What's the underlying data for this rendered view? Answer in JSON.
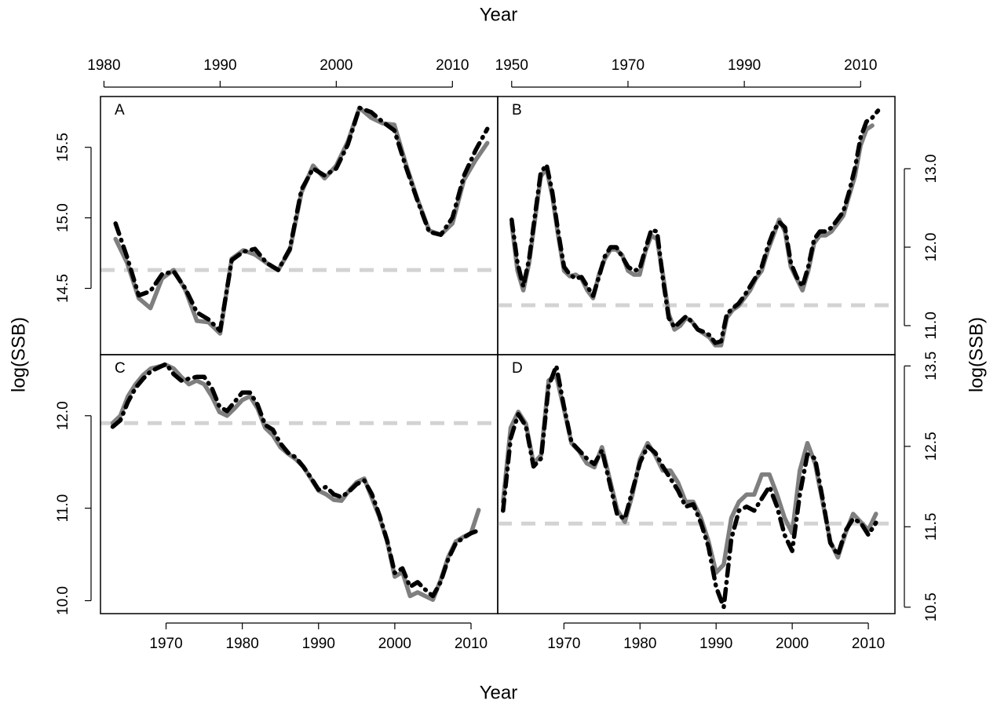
{
  "labels": {
    "top": "Year",
    "bottom": "Year",
    "left": "log(SSB)",
    "right": "log(SSB)"
  },
  "chart_data": [
    {
      "type": "line",
      "label": "A",
      "xaxis": "top",
      "yaxis": "left",
      "xlim": [
        1979.7,
        2013.9
      ],
      "ylim": [
        14.03,
        15.86
      ],
      "xticks": [
        1980,
        1990,
        2000,
        2010
      ],
      "yticks": [
        14.5,
        {
          "value": 15,
          "label": "15.0"
        },
        15.5
      ],
      "reference": 14.63,
      "reference_color": "#d3d3d3",
      "x": [
        1981,
        1982,
        1983,
        1984,
        1985,
        1986,
        1987,
        1988,
        1989,
        1990,
        1991,
        1992,
        1993,
        1994,
        1995,
        1996,
        1997,
        1998,
        1999,
        2000,
        2001,
        2002,
        2003,
        2004,
        2005,
        2006,
        2007,
        2008,
        2009,
        2010,
        2011,
        2012,
        2013
      ],
      "series": [
        {
          "color": "#7f7f7f",
          "style": "solid",
          "values": [
            14.85,
            14.68,
            14.43,
            14.36,
            14.57,
            14.63,
            14.49,
            14.27,
            14.26,
            14.18,
            14.71,
            14.77,
            14.74,
            14.68,
            14.63,
            14.77,
            15.18,
            15.37,
            15.28,
            15.37,
            15.54,
            15.78,
            15.71,
            15.67,
            15.66,
            15.38,
            15.13,
            14.91,
            14.88,
            14.96,
            15.27,
            15.41,
            15.53
          ]
        },
        {
          "color": "#000000",
          "style": "dashdot",
          "values": [
            14.96,
            14.72,
            14.45,
            14.48,
            14.6,
            14.62,
            14.5,
            14.33,
            14.28,
            14.2,
            14.7,
            14.76,
            14.78,
            14.68,
            14.63,
            14.78,
            15.2,
            15.35,
            15.3,
            15.35,
            15.52,
            15.78,
            15.75,
            15.68,
            15.62,
            15.36,
            15.12,
            14.9,
            14.88,
            15.0,
            15.3,
            15.48,
            15.63
          ]
        }
      ]
    },
    {
      "type": "line",
      "label": "B",
      "xaxis": "top",
      "yaxis": "right",
      "xlim": [
        1947.6,
        2015.9
      ],
      "ylim": [
        10.63,
        13.92
      ],
      "xticks": [
        1950,
        1970,
        1990,
        2010
      ],
      "yticks": [
        {
          "value": 11,
          "label": "11.0"
        },
        {
          "value": 12,
          "label": "12.0"
        },
        {
          "value": 13,
          "label": "13.0"
        }
      ],
      "reference": 11.26,
      "reference_color": "#d3d3d3",
      "x": [
        1950,
        1951,
        1952,
        1953,
        1954,
        1955,
        1956,
        1957,
        1958,
        1959,
        1960,
        1961,
        1962,
        1963,
        1964,
        1965,
        1966,
        1967,
        1968,
        1969,
        1970,
        1971,
        1972,
        1973,
        1974,
        1975,
        1976,
        1977,
        1978,
        1979,
        1980,
        1981,
        1982,
        1983,
        1984,
        1985,
        1986,
        1987,
        1988,
        1989,
        1990,
        1991,
        1992,
        1993,
        1994,
        1995,
        1996,
        1997,
        1998,
        1999,
        2000,
        2001,
        2002,
        2003,
        2004,
        2005,
        2006,
        2007,
        2008,
        2009,
        2010,
        2011,
        2012,
        2013
      ],
      "series": [
        {
          "color": "#7f7f7f",
          "style": "solid",
          "values": [
            12.3,
            11.7,
            11.45,
            11.8,
            12.35,
            12.9,
            13.0,
            12.65,
            12.15,
            11.7,
            11.63,
            11.65,
            11.6,
            11.45,
            11.35,
            11.65,
            11.85,
            11.97,
            11.97,
            11.9,
            11.7,
            11.65,
            11.65,
            11.95,
            12.15,
            12.1,
            11.65,
            11.15,
            10.95,
            11.0,
            11.1,
            11.05,
            10.95,
            10.9,
            10.85,
            10.75,
            10.75,
            11.1,
            11.2,
            11.25,
            11.35,
            11.45,
            11.6,
            11.7,
            11.95,
            12.15,
            12.35,
            12.2,
            11.75,
            11.6,
            11.45,
            11.7,
            12.05,
            12.15,
            12.15,
            12.2,
            12.3,
            12.4,
            12.65,
            12.9,
            13.3,
            13.5,
            13.55,
            null
          ]
        },
        {
          "color": "#000000",
          "style": "dashdot",
          "values": [
            12.35,
            11.8,
            11.5,
            11.85,
            12.4,
            12.95,
            13.05,
            12.7,
            12.2,
            11.75,
            11.65,
            11.6,
            11.62,
            11.5,
            11.38,
            11.62,
            11.88,
            12.0,
            12.0,
            11.88,
            11.75,
            11.7,
            11.72,
            11.98,
            12.22,
            12.2,
            11.6,
            11.1,
            10.98,
            11.05,
            11.12,
            11.05,
            10.95,
            10.92,
            10.88,
            10.78,
            10.8,
            11.15,
            11.22,
            11.28,
            11.38,
            11.5,
            11.62,
            11.75,
            12.0,
            12.2,
            12.32,
            12.25,
            11.8,
            11.62,
            11.5,
            11.75,
            12.1,
            12.2,
            12.2,
            12.25,
            12.35,
            12.45,
            12.7,
            13.0,
            13.4,
            13.6,
            13.65,
            13.74
          ]
        }
      ]
    },
    {
      "type": "line",
      "label": "C",
      "xaxis": "bottom",
      "yaxis": "left",
      "xlim": [
        1961.4,
        2013.5
      ],
      "ylim": [
        9.86,
        12.66
      ],
      "xticks": [
        1970,
        1980,
        1990,
        2000,
        2010
      ],
      "yticks": [
        {
          "value": 10,
          "label": "10.0"
        },
        {
          "value": 11,
          "label": "11.0"
        },
        {
          "value": 12,
          "label": "12.0"
        }
      ],
      "reference": 11.92,
      "reference_color": "#d3d3d3",
      "x": [
        1963,
        1964,
        1965,
        1966,
        1967,
        1968,
        1969,
        1970,
        1971,
        1972,
        1973,
        1974,
        1975,
        1976,
        1977,
        1978,
        1979,
        1980,
        1981,
        1982,
        1983,
        1984,
        1985,
        1986,
        1987,
        1988,
        1989,
        1990,
        1991,
        1992,
        1993,
        1994,
        1995,
        1996,
        1997,
        1998,
        1999,
        2000,
        2001,
        2002,
        2003,
        2004,
        2005,
        2006,
        2007,
        2008,
        2009,
        2010,
        2011
      ],
      "series": [
        {
          "color": "#7f7f7f",
          "style": "solid",
          "values": [
            11.92,
            12.0,
            12.21,
            12.34,
            12.44,
            12.51,
            12.53,
            12.55,
            12.51,
            12.42,
            12.34,
            12.38,
            12.34,
            12.21,
            12.04,
            12.0,
            12.08,
            12.17,
            12.21,
            12.08,
            11.87,
            11.79,
            11.66,
            11.59,
            11.53,
            11.45,
            11.32,
            11.19,
            11.15,
            11.09,
            11.08,
            11.19,
            11.28,
            11.32,
            11.11,
            10.9,
            10.64,
            10.26,
            10.31,
            10.05,
            10.09,
            10.05,
            10.01,
            10.22,
            10.47,
            10.64,
            10.69,
            10.73,
            10.98
          ]
        },
        {
          "color": "#000000",
          "style": "dashdot",
          "values": [
            11.88,
            11.95,
            12.15,
            12.3,
            12.4,
            12.48,
            12.52,
            12.56,
            12.45,
            12.38,
            12.4,
            12.42,
            12.42,
            12.3,
            12.1,
            12.05,
            12.15,
            12.25,
            12.25,
            12.12,
            11.9,
            11.85,
            11.7,
            11.6,
            11.55,
            11.45,
            11.33,
            11.2,
            11.23,
            11.15,
            11.12,
            11.18,
            11.26,
            11.3,
            11.15,
            10.92,
            10.65,
            10.3,
            10.35,
            10.15,
            10.2,
            10.12,
            10.05,
            10.2,
            10.45,
            10.62,
            10.68,
            10.73,
            10.76
          ]
        }
      ]
    },
    {
      "type": "line",
      "label": "D",
      "xaxis": "bottom",
      "yaxis": "right",
      "xlim": [
        1961.3,
        2013.5
      ],
      "ylim": [
        10.42,
        13.64
      ],
      "xticks": [
        1970,
        1980,
        1990,
        2000,
        2010
      ],
      "yticks": [
        10.5,
        11.5,
        12.5,
        13.5
      ],
      "reference": 11.54,
      "reference_color": "#d3d3d3",
      "x": [
        1962,
        1963,
        1964,
        1965,
        1966,
        1967,
        1968,
        1969,
        1970,
        1971,
        1972,
        1973,
        1974,
        1975,
        1976,
        1977,
        1978,
        1979,
        1980,
        1981,
        1982,
        1983,
        1984,
        1985,
        1986,
        1987,
        1988,
        1989,
        1990,
        1991,
        1992,
        1993,
        1994,
        1995,
        1996,
        1997,
        1998,
        1999,
        2000,
        2001,
        2002,
        2003,
        2004,
        2005,
        2006,
        2007,
        2008,
        2009,
        2010,
        2011
      ],
      "series": [
        {
          "color": "#7f7f7f",
          "style": "solid",
          "values": [
            11.81,
            12.73,
            12.93,
            12.78,
            12.29,
            12.39,
            13.32,
            13.38,
            12.97,
            12.54,
            12.44,
            12.29,
            12.24,
            12.49,
            12.1,
            11.71,
            11.56,
            11.9,
            12.34,
            12.54,
            12.39,
            12.2,
            12.2,
            12.05,
            11.81,
            11.81,
            11.61,
            11.32,
            10.93,
            11.03,
            11.61,
            11.81,
            11.9,
            11.9,
            12.15,
            12.15,
            11.9,
            11.61,
            11.42,
            12.2,
            12.54,
            12.29,
            11.81,
            11.32,
            11.12,
            11.42,
            11.66,
            11.56,
            11.46,
            11.66
          ]
        },
        {
          "color": "#000000",
          "style": "dashdot",
          "values": [
            11.7,
            12.6,
            12.9,
            12.75,
            12.25,
            12.35,
            13.25,
            13.5,
            13.0,
            12.55,
            12.45,
            12.35,
            12.28,
            12.45,
            12.05,
            11.65,
            11.6,
            11.95,
            12.3,
            12.5,
            12.42,
            12.25,
            12.1,
            11.95,
            11.75,
            11.78,
            11.55,
            11.25,
            10.75,
            10.5,
            11.35,
            11.7,
            11.75,
            11.7,
            11.85,
            12.0,
            11.75,
            11.4,
            11.2,
            11.9,
            12.4,
            12.35,
            11.85,
            11.3,
            11.15,
            11.45,
            11.6,
            11.55,
            11.4,
            11.55
          ]
        }
      ]
    }
  ]
}
